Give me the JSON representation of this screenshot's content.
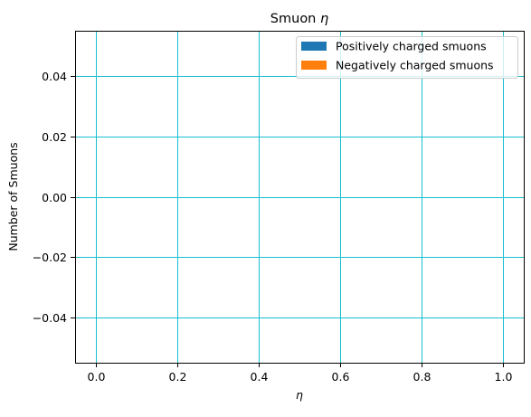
{
  "chart_data": {
    "type": "bar",
    "title": "Smuon η",
    "title_prefix": "Smuon ",
    "title_symbol": "η",
    "xlabel": "η",
    "ylabel": "Number of Smuons",
    "xlim": [
      -0.05,
      1.05
    ],
    "ylim": [
      -0.055,
      0.055
    ],
    "x_ticks": [
      0.0,
      0.2,
      0.4,
      0.6,
      0.8,
      1.0
    ],
    "x_tick_labels": [
      "0.0",
      "0.2",
      "0.4",
      "0.6",
      "0.8",
      "1.0"
    ],
    "y_ticks": [
      -0.04,
      -0.02,
      0.0,
      0.02,
      0.04
    ],
    "y_tick_labels": [
      "−0.04",
      "−0.02",
      "0.00",
      "0.02",
      "0.04"
    ],
    "grid": true,
    "grid_color": "#17becf",
    "legend_position": "upper-right",
    "series": [
      {
        "name": "Positively charged smuons",
        "color": "#1f77b4",
        "values": []
      },
      {
        "name": "Negatively charged smuons",
        "color": "#ff7f0e",
        "values": []
      }
    ]
  }
}
